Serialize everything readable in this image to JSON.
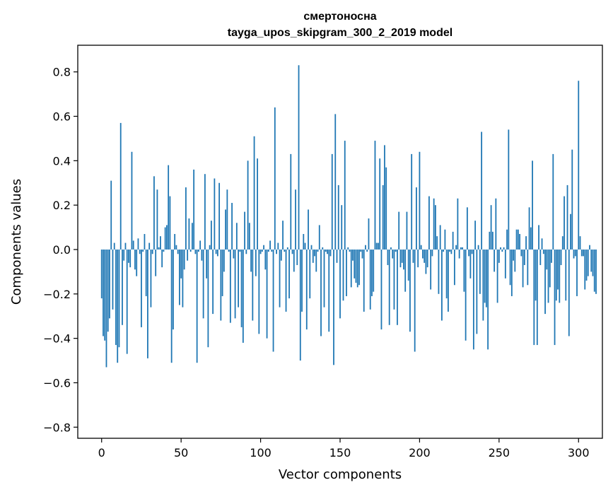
{
  "chart_data": {
    "type": "bar",
    "title": "смертоносна",
    "subtitle": "tayga_upos_skipgram_300_2_2019 model",
    "xlabel": "Vector components",
    "ylabel": "Components values",
    "xlim": [
      -15,
      315
    ],
    "ylim": [
      -0.85,
      0.92
    ],
    "xticks": [
      0,
      50,
      100,
      150,
      200,
      250,
      300
    ],
    "xtick_labels": [
      "0",
      "50",
      "100",
      "150",
      "200",
      "250",
      "300"
    ],
    "yticks": [
      -0.8,
      -0.6,
      -0.4,
      -0.2,
      0.0,
      0.2,
      0.4,
      0.6,
      0.8
    ],
    "ytick_labels": [
      "−0.8",
      "−0.6",
      "−0.4",
      "−0.2",
      "0.0",
      "0.2",
      "0.4",
      "0.6",
      "0.8"
    ],
    "grid": false,
    "bar_color": "#1f77b4",
    "values": [
      -0.22,
      -0.39,
      -0.41,
      -0.53,
      -0.37,
      -0.31,
      0.31,
      -0.27,
      0.03,
      -0.43,
      -0.51,
      -0.44,
      0.57,
      -0.34,
      -0.05,
      0.03,
      -0.47,
      -0.06,
      -0.08,
      0.44,
      0.04,
      -0.09,
      -0.12,
      0.05,
      -0.02,
      -0.35,
      -0.01,
      0.07,
      -0.21,
      -0.49,
      0.03,
      -0.26,
      -0.02,
      0.33,
      -0.12,
      0.27,
      0.01,
      0.06,
      -0.08,
      -0.01,
      0.1,
      0.11,
      0.38,
      0.24,
      -0.51,
      -0.36,
      0.07,
      0.02,
      -0.02,
      -0.25,
      -0.13,
      -0.26,
      -0.09,
      0.28,
      -0.05,
      0.14,
      -0.01,
      0.12,
      0.36,
      -0.02,
      -0.51,
      -0.01,
      0.04,
      -0.05,
      -0.31,
      0.34,
      -0.13,
      -0.44,
      0.02,
      0.13,
      -0.29,
      0.32,
      -0.02,
      -0.03,
      0.3,
      -0.32,
      -0.21,
      -0.1,
      0.18,
      0.27,
      -0.01,
      -0.33,
      0.21,
      -0.04,
      -0.31,
      0.12,
      -0.26,
      -0.01,
      -0.35,
      -0.42,
      0.17,
      -0.02,
      0.4,
      0.12,
      -0.1,
      -0.32,
      0.51,
      -0.12,
      0.41,
      -0.38,
      -0.02,
      -0.01,
      0.02,
      -0.09,
      -0.4,
      -0.01,
      0.04,
      -0.01,
      -0.46,
      0.64,
      -0.02,
      0.03,
      -0.26,
      -0.05,
      0.13,
      -0.01,
      -0.28,
      0.01,
      -0.22,
      0.43,
      -0.02,
      -0.1,
      0.27,
      -0.07,
      0.83,
      -0.5,
      -0.28,
      0.07,
      0.03,
      -0.36,
      0.18,
      -0.22,
      0.02,
      -0.06,
      -0.03,
      -0.1,
      -0.01,
      0.11,
      -0.39,
      0.01,
      -0.26,
      -0.01,
      -0.02,
      -0.37,
      -0.03,
      0.43,
      -0.52,
      0.61,
      -0.06,
      0.29,
      -0.31,
      0.2,
      -0.23,
      0.49,
      -0.21,
      0.01,
      -0.01,
      -0.17,
      -0.05,
      -0.13,
      -0.15,
      -0.17,
      -0.16,
      -0.01,
      -0.04,
      -0.28,
      0.02,
      -0.01,
      0.14,
      -0.27,
      -0.21,
      -0.19,
      0.49,
      0.03,
      0.03,
      0.41,
      -0.36,
      0.29,
      0.47,
      0.37,
      -0.07,
      -0.34,
      0.01,
      -0.04,
      -0.27,
      -0.01,
      -0.34,
      0.17,
      -0.08,
      -0.06,
      -0.09,
      -0.19,
      0.17,
      -0.14,
      -0.37,
      0.43,
      -0.06,
      -0.46,
      0.28,
      -0.08,
      0.44,
      0.02,
      -0.04,
      -0.06,
      -0.11,
      -0.08,
      0.24,
      -0.18,
      -0.03,
      0.23,
      0.2,
      0.06,
      -0.2,
      0.11,
      -0.32,
      -0.01,
      0.09,
      -0.22,
      -0.28,
      -0.01,
      -0.02,
      0.08,
      -0.16,
      0.02,
      0.23,
      -0.04,
      0.01,
      0.01,
      -0.19,
      -0.41,
      0.19,
      -0.03,
      -0.13,
      -0.02,
      -0.45,
      0.13,
      -0.38,
      0.02,
      -0.2,
      0.53,
      -0.32,
      -0.24,
      -0.26,
      -0.45,
      0.08,
      0.2,
      0.08,
      -0.1,
      0.23,
      -0.24,
      -0.06,
      0.01,
      -0.01,
      0.01,
      -0.13,
      0.09,
      0.54,
      -0.16,
      -0.21,
      -0.05,
      -0.1,
      0.09,
      0.09,
      0.07,
      -0.03,
      -0.17,
      -0.07,
      0.06,
      -0.16,
      0.19,
      0.1,
      0.4,
      -0.43,
      -0.23,
      -0.43,
      0.11,
      -0.07,
      0.05,
      -0.02,
      -0.29,
      -0.09,
      -0.24,
      -0.17,
      -0.06,
      0.43,
      -0.43,
      -0.23,
      -0.18,
      -0.24,
      -0.07,
      0.06,
      0.24,
      -0.23,
      0.29,
      -0.39,
      0.16,
      0.45,
      -0.04,
      -0.03,
      -0.21,
      0.76,
      0.06,
      -0.03,
      -0.03,
      -0.18,
      -0.14,
      -0.12,
      0.02,
      -0.1,
      -0.12,
      -0.19,
      -0.2
    ]
  }
}
